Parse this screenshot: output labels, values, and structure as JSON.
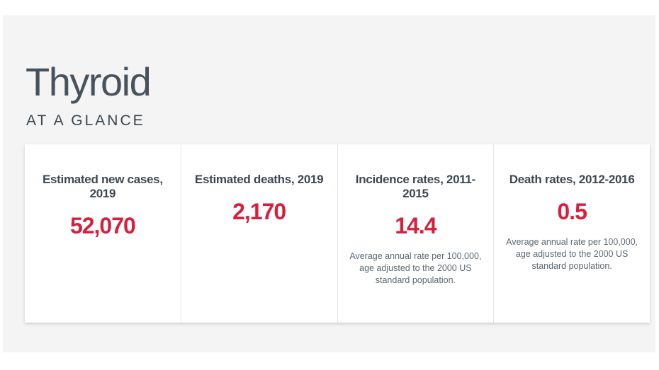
{
  "page": {
    "title": "Thyroid",
    "section_label": "AT A GLANCE"
  },
  "cards": [
    {
      "heading": "Estimated new cases, 2019",
      "value": "52,070",
      "note": ""
    },
    {
      "heading": "Estimated deaths, 2019",
      "value": "2,170",
      "note": ""
    },
    {
      "heading": "Incidence rates, 2011-2015",
      "value": "14.4",
      "note": "Average annual rate per 100,000, age adjusted to the 2000 US standard population."
    },
    {
      "heading": "Death rates, 2012-2016",
      "value": "0.5",
      "note": "Average annual rate per 100,000, age adjusted to the 2000 US standard population."
    }
  ],
  "colors": {
    "accent_red": "#d6203d",
    "title_slate": "#47535c",
    "heading_slate": "#3d4852",
    "note_gray": "#5d6974",
    "panel_gray": "#f4f4f4"
  }
}
